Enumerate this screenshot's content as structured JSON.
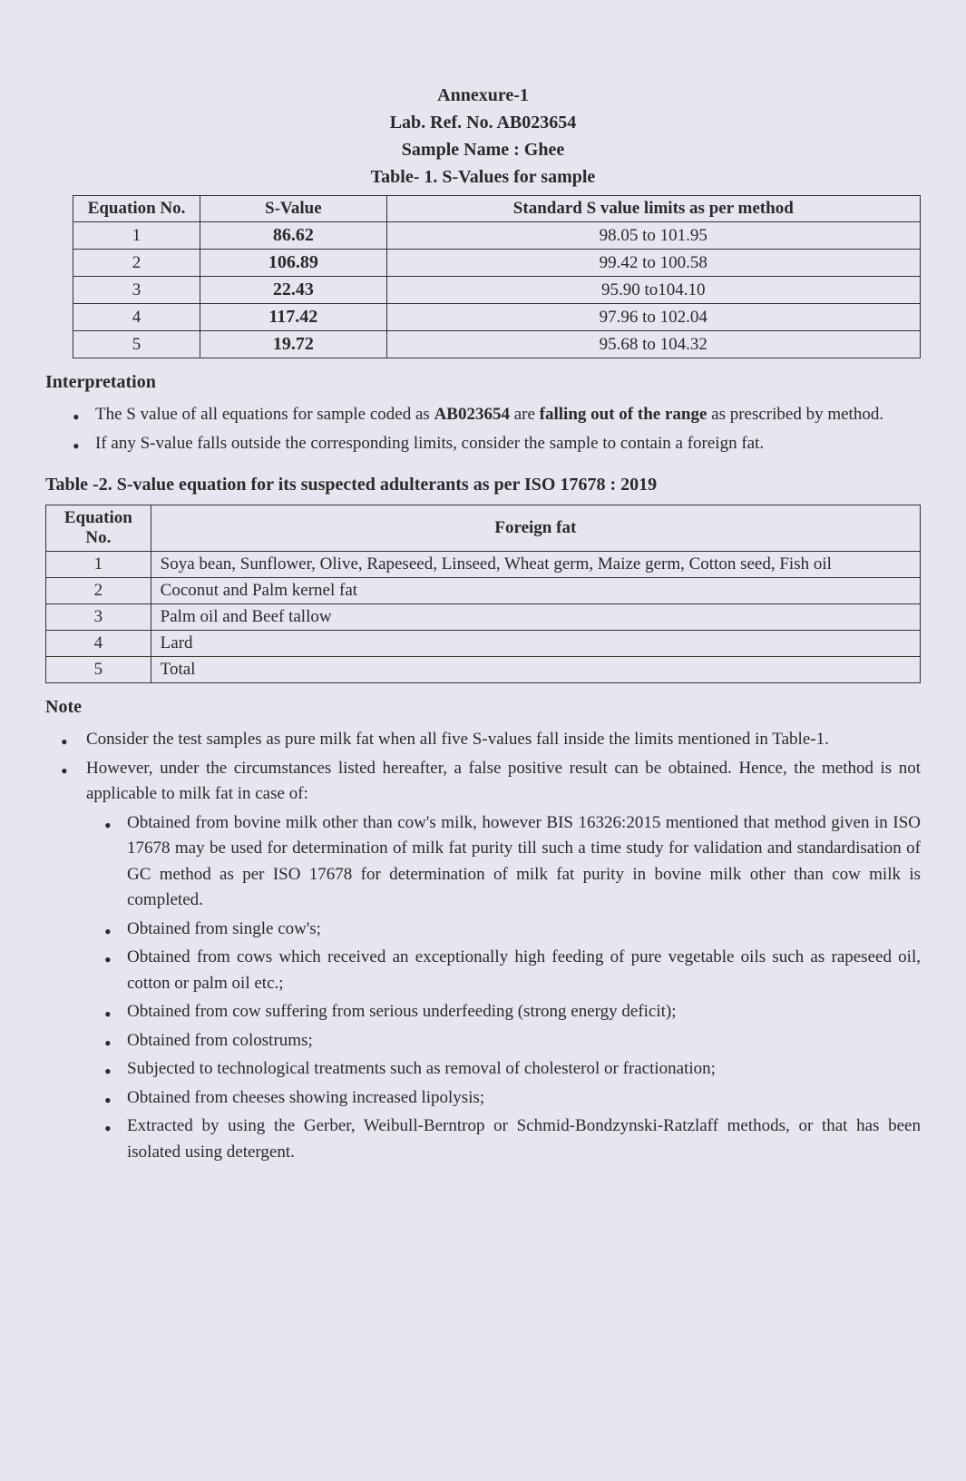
{
  "header": {
    "annexure": "Annexure-1",
    "labref": "Lab. Ref. No. AB023654",
    "sample": "Sample Name : Ghee",
    "table1_caption": "Table- 1. S-Values for sample"
  },
  "table1": {
    "headers": {
      "col1": "Equation No.",
      "col2": "S-Value",
      "col3": "Standard S value limits as per method"
    },
    "rows": [
      {
        "eq": "1",
        "svalue": "86.62",
        "limits": "98.05 to 101.95"
      },
      {
        "eq": "2",
        "svalue": "106.89",
        "limits": "99.42 to 100.58"
      },
      {
        "eq": "3",
        "svalue": "22.43",
        "limits": "95.90 to104.10"
      },
      {
        "eq": "4",
        "svalue": "117.42",
        "limits": "97.96 to 102.04"
      },
      {
        "eq": "5",
        "svalue": "19.72",
        "limits": "95.68 to 104.32"
      }
    ]
  },
  "interpretation": {
    "heading": "Interpretation",
    "bullets": [
      {
        "pre": "The S value of all equations for sample coded as ",
        "bold1": "AB023654",
        "mid": " are ",
        "bold2": "falling out of the range",
        "post": " as prescribed by method."
      },
      {
        "pre": "If any S-value falls outside the corresponding limits, consider the sample to contain a foreign fat.",
        "bold1": "",
        "mid": "",
        "bold2": "",
        "post": ""
      }
    ]
  },
  "table2": {
    "caption": "Table -2. S-value equation for its suspected adulterants as per ISO 17678 : 2019",
    "headers": {
      "col1": "Equation No.",
      "col2": "Foreign fat"
    },
    "rows": [
      {
        "eq": "1",
        "fat": "Soya bean, Sunflower, Olive, Rapeseed, Linseed, Wheat germ, Maize germ, Cotton seed, Fish oil"
      },
      {
        "eq": "2",
        "fat": "Coconut and Palm kernel fat"
      },
      {
        "eq": "3",
        "fat": "Palm oil and Beef tallow"
      },
      {
        "eq": "4",
        "fat": "Lard"
      },
      {
        "eq": "5",
        "fat": "Total"
      }
    ]
  },
  "note": {
    "heading": "Note",
    "bullets": [
      "Consider the test samples as pure milk fat when all five S-values fall inside the limits mentioned in Table-1.",
      "However, under the circumstances listed hereafter, a false positive result can be obtained. Hence, the method is not applicable to milk fat in case of:"
    ],
    "subbullets": [
      "Obtained from bovine milk other than cow's milk, however BIS 16326:2015 mentioned that method given in ISO 17678 may be used for determination of milk fat purity till such a time study for validation and standardisation of GC method as per ISO 17678 for determination of milk fat purity in bovine milk other than cow milk is completed.",
      "Obtained from single cow's;",
      "Obtained from cows which received an exceptionally high feeding of pure vegetable oils such as rapeseed oil, cotton or palm oil etc.;",
      "Obtained from cow suffering from serious underfeeding (strong energy deficit);",
      "Obtained from colostrums;",
      "Subjected to technological treatments such as removal of cholesterol or fractionation;",
      "Obtained from cheeses showing increased lipolysis;",
      "Extracted by using the Gerber, Weibull-Berntrop or Schmid-Bondzynski-Ratzlaff methods, or that has been isolated using detergent."
    ]
  },
  "styling": {
    "background_color": "#e8e4f0",
    "text_color": "#2a2a2a",
    "border_color": "#333333",
    "body_fontsize": 19,
    "heading_fontsize": 20,
    "font_family": "Georgia, Times New Roman, serif"
  }
}
